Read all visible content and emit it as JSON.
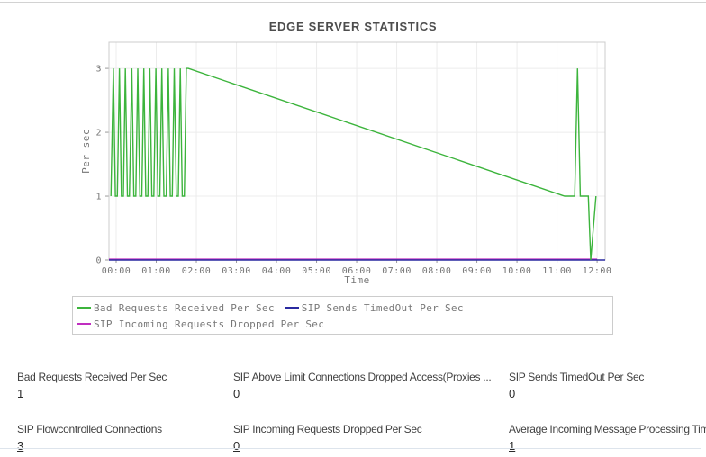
{
  "page": {
    "title": "EDGE SERVER STATISTICS"
  },
  "chart_data": {
    "type": "line",
    "title": "EDGE SERVER STATISTICS",
    "xlabel": "Time",
    "ylabel": "Per sec",
    "x_ticks": [
      "00:00",
      "01:00",
      "02:00",
      "03:00",
      "04:00",
      "05:00",
      "06:00",
      "07:00",
      "08:00",
      "09:00",
      "10:00",
      "11:00",
      "12:00"
    ],
    "x_range_hours": [
      -0.18,
      12.2
    ],
    "y_ticks": [
      0,
      1,
      2,
      3
    ],
    "ylim": [
      0,
      3.41
    ],
    "grid": true,
    "legend_position": "bottom",
    "colors": {
      "grid": "#ececec",
      "plot_border": "#cccccc",
      "tick": "#9a9a9a",
      "tick_text": "#757575"
    },
    "series": [
      {
        "name": "Bad Requests Received Per Sec",
        "color": "#3cb43c",
        "points": [
          [
            -0.13,
            1
          ],
          [
            -0.07,
            3
          ],
          [
            -0.02,
            1
          ],
          [
            0.03,
            1
          ],
          [
            0.08,
            3
          ],
          [
            0.13,
            1
          ],
          [
            0.18,
            1
          ],
          [
            0.23,
            3
          ],
          [
            0.28,
            1
          ],
          [
            0.33,
            1
          ],
          [
            0.39,
            3
          ],
          [
            0.44,
            1
          ],
          [
            0.49,
            1
          ],
          [
            0.54,
            3
          ],
          [
            0.59,
            1
          ],
          [
            0.64,
            1
          ],
          [
            0.69,
            3
          ],
          [
            0.74,
            1
          ],
          [
            0.79,
            1
          ],
          [
            0.84,
            3
          ],
          [
            0.89,
            1
          ],
          [
            0.94,
            1
          ],
          [
            0.99,
            3
          ],
          [
            1.04,
            1
          ],
          [
            1.09,
            1
          ],
          [
            1.14,
            3
          ],
          [
            1.19,
            1
          ],
          [
            1.25,
            1
          ],
          [
            1.3,
            3
          ],
          [
            1.35,
            1
          ],
          [
            1.4,
            1
          ],
          [
            1.45,
            3
          ],
          [
            1.5,
            1
          ],
          [
            1.55,
            1
          ],
          [
            1.6,
            3
          ],
          [
            1.65,
            1
          ],
          [
            1.7,
            1
          ],
          [
            1.75,
            3
          ],
          [
            1.8,
            3
          ],
          [
            11.19,
            1
          ],
          [
            11.44,
            1
          ],
          [
            11.51,
            3
          ],
          [
            11.58,
            1
          ],
          [
            11.78,
            1
          ],
          [
            11.84,
            0
          ],
          [
            11.97,
            1
          ]
        ]
      },
      {
        "name": "SIP Sends TimedOut Per Sec",
        "color": "#2a2aa0",
        "points": [
          [
            -0.18,
            0
          ],
          [
            12.2,
            0
          ]
        ]
      },
      {
        "name": "SIP Incoming Requests Dropped Per Sec",
        "color": "#c02ec0",
        "points": [
          [
            -0.18,
            0
          ],
          [
            12.0,
            0
          ]
        ]
      }
    ]
  },
  "stats": {
    "items": [
      {
        "label": "Bad Requests Received Per Sec",
        "value": "1"
      },
      {
        "label": "SIP Above Limit Connections Dropped Access(Proxies ...",
        "value": "0"
      },
      {
        "label": "SIP Sends TimedOut Per Sec",
        "value": "0"
      },
      {
        "label": "SIP Flowcontrolled Connections",
        "value": "3"
      },
      {
        "label": "SIP Incoming Requests Dropped Per Sec",
        "value": "0"
      },
      {
        "label": "Average Incoming Message Processing Time",
        "value": "1"
      }
    ]
  }
}
